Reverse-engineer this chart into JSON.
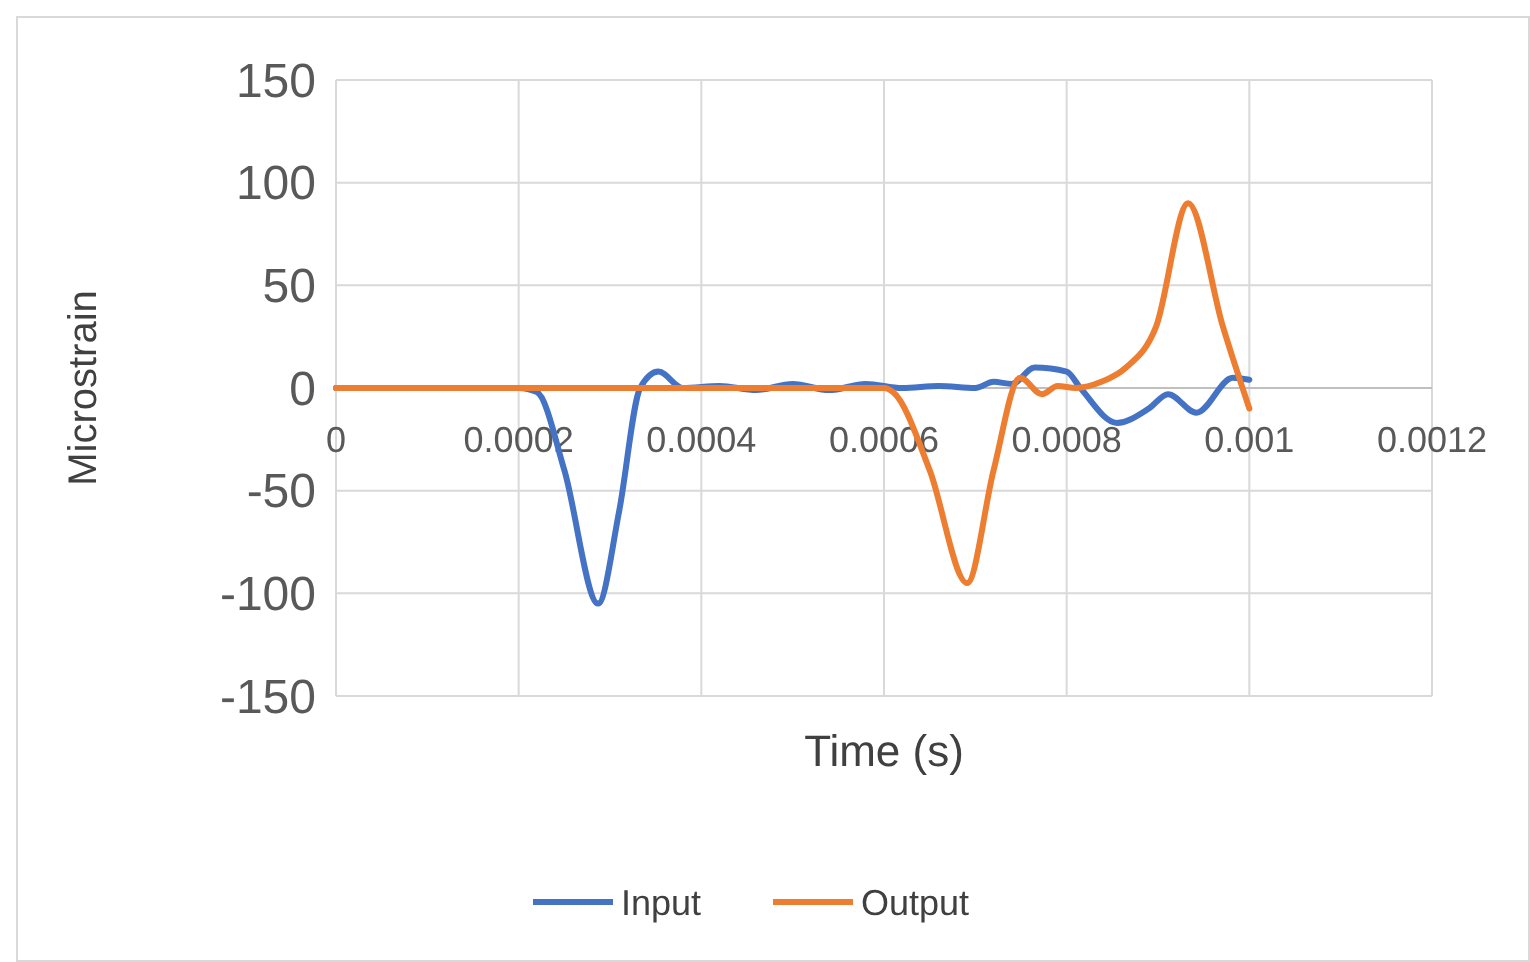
{
  "chart_data": {
    "type": "line",
    "xlabel": "Time (s)",
    "ylabel": "Microstrain",
    "xlim": [
      0,
      0.0012
    ],
    "ylim": [
      -150,
      150
    ],
    "xticks": [
      0,
      0.0002,
      0.0004,
      0.0006,
      0.0008,
      0.001,
      0.0012
    ],
    "yticks": [
      -150,
      -100,
      -50,
      0,
      50,
      100,
      150
    ],
    "grid": true,
    "legend": "bottom",
    "marker": "none",
    "line_style": "solid",
    "series": [
      {
        "name": "Input",
        "color": "#4472c4",
        "x": [
          0,
          0.0001,
          0.0002,
          0.00022,
          0.00025,
          0.000287,
          0.00031,
          0.000333,
          0.000353,
          0.00038,
          0.00042,
          0.00046,
          0.0005,
          0.00054,
          0.00058,
          0.00062,
          0.00066,
          0.0007,
          0.00072,
          0.00074,
          0.000765,
          0.0008,
          0.000815,
          0.000855,
          0.00089,
          0.000911,
          0.000942,
          0.000982,
          0.001
        ],
        "values": [
          0,
          0,
          0,
          -2,
          -40,
          -105,
          -60,
          0,
          8,
          0,
          1,
          -1,
          2,
          -1,
          2,
          0,
          1,
          0,
          3,
          2,
          10,
          8,
          0,
          -17,
          -10,
          -3,
          -12,
          5,
          4
        ]
      },
      {
        "name": "Output",
        "color": "#ed7d31",
        "x": [
          0,
          0.0002,
          0.0004,
          0.0006,
          0.00061,
          0.00065,
          0.000691,
          0.00072,
          0.000749,
          0.000773,
          0.00079,
          0.00081,
          0.000838,
          0.000865,
          0.000898,
          0.000933,
          0.000971,
          0.001
        ],
        "values": [
          0,
          0,
          0,
          0,
          -2,
          -40,
          -95,
          -40,
          5,
          -3,
          1,
          0,
          3,
          10,
          30,
          90,
          30,
          -10
        ]
      }
    ]
  }
}
